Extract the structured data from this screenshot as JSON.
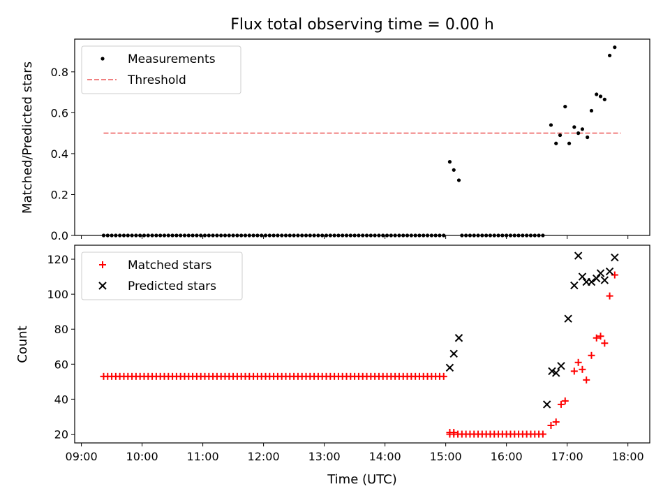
{
  "figure": {
    "title": "Flux total observing time = 0.00 h"
  },
  "colors": {
    "measurements": "#000000",
    "threshold": "#f08080",
    "matched": "#ff0000",
    "predicted": "#000000",
    "axes": "#000000",
    "legend_border": "#cccccc"
  },
  "chart_data": [
    {
      "type": "scatter",
      "panel": "top",
      "xlabel": "",
      "ylabel": "Matched/Predicted stars",
      "ylim": [
        0,
        0.96
      ],
      "xlim_hours": [
        8.89,
        18.36
      ],
      "yticks": [
        0.0,
        0.2,
        0.4,
        0.6,
        0.8
      ],
      "ytick_labels": [
        "0.0",
        "0.2",
        "0.4",
        "0.6",
        "0.8"
      ],
      "grid": false,
      "legend": "top-left",
      "legend_entries": [
        "Measurements",
        "Threshold"
      ],
      "threshold": {
        "name": "Threshold",
        "y": 0.5,
        "x_start": "09:22",
        "x_end": "17:53",
        "style": "dashed"
      },
      "series": [
        {
          "name": "Measurements",
          "marker": "dot",
          "zero_run_1": {
            "from": "09:22",
            "to": "14:59",
            "step_minutes": 4,
            "y": 0.0
          },
          "zero_run_2": {
            "from": "15:16",
            "to": "16:39",
            "step_minutes": 4,
            "y": 0.0
          },
          "points": [
            {
              "x": "15:04",
              "y": 0.36
            },
            {
              "x": "15:08",
              "y": 0.32
            },
            {
              "x": "15:13",
              "y": 0.27
            },
            {
              "x": "16:44",
              "y": 0.54
            },
            {
              "x": "16:49",
              "y": 0.45
            },
            {
              "x": "16:53",
              "y": 0.49
            },
            {
              "x": "16:58",
              "y": 0.63
            },
            {
              "x": "17:02",
              "y": 0.45
            },
            {
              "x": "17:07",
              "y": 0.53
            },
            {
              "x": "17:11",
              "y": 0.5
            },
            {
              "x": "17:15",
              "y": 0.52
            },
            {
              "x": "17:20",
              "y": 0.48
            },
            {
              "x": "17:24",
              "y": 0.61
            },
            {
              "x": "17:29",
              "y": 0.69
            },
            {
              "x": "17:33",
              "y": 0.68
            },
            {
              "x": "17:37",
              "y": 0.665
            },
            {
              "x": "17:42",
              "y": 0.88
            },
            {
              "x": "17:47",
              "y": 0.92
            }
          ]
        }
      ]
    },
    {
      "type": "scatter",
      "panel": "bottom",
      "xlabel": "Time (UTC)",
      "ylabel": "Count",
      "ylim": [
        15,
        128
      ],
      "xlim_hours": [
        8.89,
        18.36
      ],
      "yticks": [
        20,
        40,
        60,
        80,
        100,
        120
      ],
      "ytick_labels": [
        "20",
        "40",
        "60",
        "80",
        "100",
        "120"
      ],
      "xticks": [
        "09:00",
        "10:00",
        "11:00",
        "12:00",
        "13:00",
        "14:00",
        "15:00",
        "16:00",
        "17:00",
        "18:00"
      ],
      "grid": false,
      "legend": "top-left",
      "legend_entries": [
        "Matched stars",
        "Predicted stars"
      ],
      "series": [
        {
          "name": "Matched stars",
          "marker": "plus",
          "run_1": {
            "from": "09:22",
            "to": "14:59",
            "step_minutes": 4,
            "y": 53
          },
          "run_2": {
            "from": "15:04",
            "to": "16:39",
            "step_minutes": 4,
            "y": 20
          },
          "points": [
            {
              "x": "15:04",
              "y": 21
            },
            {
              "x": "15:08",
              "y": 21
            },
            {
              "x": "16:44",
              "y": 25
            },
            {
              "x": "16:49",
              "y": 27
            },
            {
              "x": "16:54",
              "y": 37
            },
            {
              "x": "16:58",
              "y": 39
            },
            {
              "x": "17:07",
              "y": 56
            },
            {
              "x": "17:11",
              "y": 61
            },
            {
              "x": "17:15",
              "y": 57
            },
            {
              "x": "17:19",
              "y": 51
            },
            {
              "x": "17:24",
              "y": 65
            },
            {
              "x": "17:29",
              "y": 75
            },
            {
              "x": "17:33",
              "y": 76
            },
            {
              "x": "17:37",
              "y": 72
            },
            {
              "x": "17:42",
              "y": 99
            },
            {
              "x": "17:47",
              "y": 111
            }
          ]
        },
        {
          "name": "Predicted stars",
          "marker": "x",
          "points": [
            {
              "x": "15:04",
              "y": 58
            },
            {
              "x": "15:08",
              "y": 66
            },
            {
              "x": "15:13",
              "y": 75
            },
            {
              "x": "16:40",
              "y": 37
            },
            {
              "x": "16:45",
              "y": 56
            },
            {
              "x": "16:49",
              "y": 55
            },
            {
              "x": "16:54",
              "y": 59
            },
            {
              "x": "17:01",
              "y": 86
            },
            {
              "x": "17:07",
              "y": 105
            },
            {
              "x": "17:11",
              "y": 122
            },
            {
              "x": "17:15",
              "y": 110
            },
            {
              "x": "17:19",
              "y": 107
            },
            {
              "x": "17:24",
              "y": 107
            },
            {
              "x": "17:29",
              "y": 109
            },
            {
              "x": "17:33",
              "y": 112
            },
            {
              "x": "17:37",
              "y": 108
            },
            {
              "x": "17:42",
              "y": 113
            },
            {
              "x": "17:47",
              "y": 121
            }
          ]
        }
      ]
    }
  ]
}
